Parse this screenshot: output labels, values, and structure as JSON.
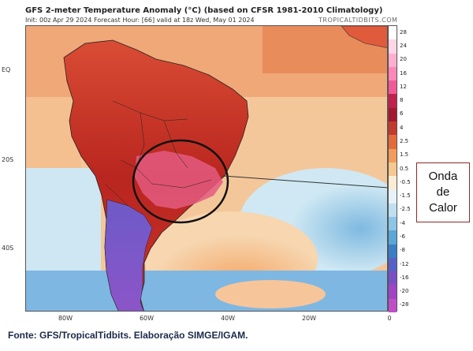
{
  "header": {
    "title": "GFS 2-meter Temperature Anomaly (°C) (based on CFSR 1981-2010 Climatology)",
    "subtitle": "Init: 00z Apr 29 2024   Forecast Hour: [66]   valid at 18z Wed, May 01 2024",
    "brand": "TROPICALTIDBITS.COM"
  },
  "axes": {
    "lat_labels": [
      "EQ",
      "20S",
      "40S"
    ],
    "lon_labels": [
      "80W",
      "60W",
      "40W",
      "20W",
      "0"
    ]
  },
  "colorbar": {
    "ticks": [
      "28",
      "24",
      "20",
      "16",
      "12",
      "8",
      "6",
      "4",
      "2.5",
      "1.5",
      "0.5",
      "-0.5",
      "-1.5",
      "-2.5",
      "-4",
      "-6",
      "-8",
      "-12",
      "-16",
      "-20",
      "-28"
    ],
    "colors": [
      "#ffffff",
      "#ffd6e6",
      "#ffaed0",
      "#ff86b6",
      "#f25a96",
      "#c21f4f",
      "#a3182e",
      "#c43a2d",
      "#e36a3b",
      "#f39b5a",
      "#f7c790",
      "#fbecd4",
      "#e7f2f8",
      "#bfe0f0",
      "#8cc5e6",
      "#5aa7d8",
      "#3a7ec8",
      "#5661c8",
      "#7a4ec6",
      "#a044c6",
      "#c04ec8"
    ]
  },
  "callout": {
    "line1": "Onda",
    "line2": "de",
    "line3": "Calor"
  },
  "footer": {
    "source": "Fonte: GFS/TropicalTidbits. Elaboração SIMGE/IGAM."
  },
  "map_meta": {
    "highlight_region": "heat-wave-ellipse"
  }
}
